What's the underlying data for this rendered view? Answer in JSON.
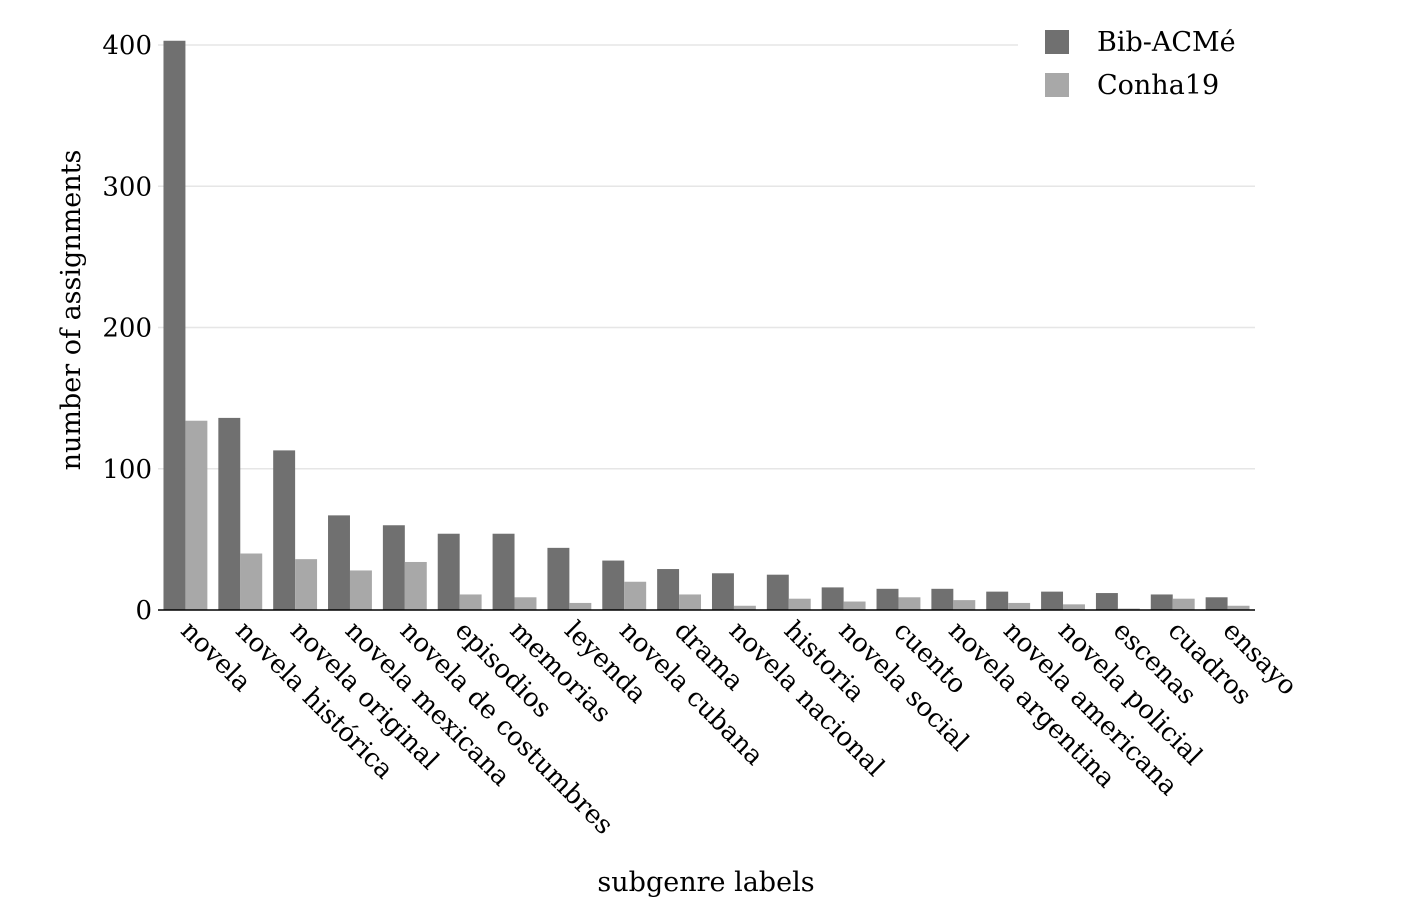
{
  "chart_data": {
    "type": "bar",
    "title": "",
    "xlabel": "subgenre labels",
    "ylabel": "number of assignments",
    "ylim": [
      0,
      400
    ],
    "yticks": [
      0,
      100,
      200,
      300,
      400
    ],
    "grid": "horizontal",
    "legend_position": "top-right",
    "categories": [
      "novela",
      "novela histórica",
      "novela original",
      "novela mexicana",
      "novela de costumbres",
      "episodios",
      "memorias",
      "leyenda",
      "novela cubana",
      "drama",
      "novela nacional",
      "historia",
      "novela social",
      "cuento",
      "novela argentina",
      "novela americana",
      "novela policial",
      "escenas",
      "cuadros",
      "ensayo"
    ],
    "series": [
      {
        "name": "Bib-ACMé",
        "color": "#707070",
        "values": [
          403,
          136,
          113,
          67,
          60,
          54,
          54,
          44,
          35,
          29,
          26,
          25,
          16,
          15,
          15,
          13,
          13,
          12,
          11,
          9
        ]
      },
      {
        "name": "Conha19",
        "color": "#a8a8a8",
        "values": [
          134,
          40,
          36,
          28,
          34,
          11,
          9,
          5,
          20,
          11,
          3,
          8,
          6,
          9,
          7,
          5,
          4,
          1,
          8,
          3
        ]
      }
    ]
  }
}
